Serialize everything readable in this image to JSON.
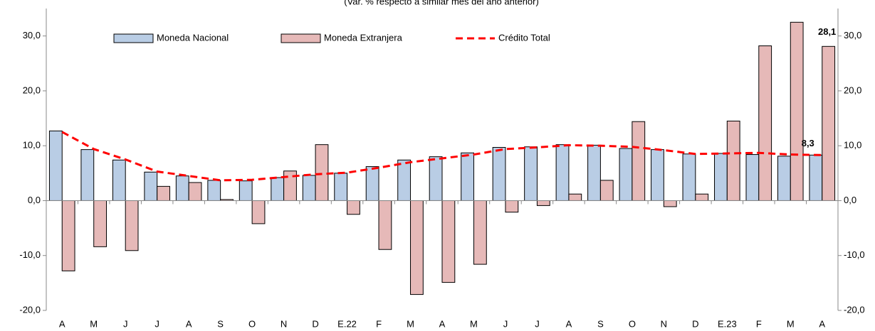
{
  "chart_data": {
    "type": "bar-line",
    "subtitle": "(Var. % respecto a similar mes del año anterior)",
    "categories": [
      "A",
      "M",
      "J",
      "J",
      "A",
      "S",
      "O",
      "N",
      "D",
      "E.22",
      "F",
      "M",
      "A",
      "M",
      "J",
      "J",
      "A",
      "S",
      "O",
      "N",
      "D",
      "E.23",
      "F",
      "M",
      "A"
    ],
    "series": [
      {
        "name": "Moneda Nacional",
        "type": "bar",
        "color": "#b9cde5",
        "values": [
          12.7,
          9.3,
          7.4,
          5.2,
          4.5,
          3.7,
          3.6,
          4.2,
          4.6,
          5.0,
          6.2,
          7.4,
          8.0,
          8.7,
          9.7,
          9.8,
          10.2,
          10.1,
          9.5,
          9.3,
          8.5,
          8.6,
          8.4,
          8.1,
          8.3
        ]
      },
      {
        "name": "Moneda Extranjera",
        "type": "bar",
        "color": "#e6b9b8",
        "values": [
          -12.8,
          -8.4,
          -9.1,
          2.6,
          3.3,
          0.2,
          -4.2,
          5.4,
          10.2,
          -2.5,
          -8.9,
          -17.1,
          -14.9,
          -11.6,
          -2.1,
          -0.9,
          1.2,
          3.7,
          14.4,
          -1.1,
          1.2,
          14.5,
          28.2,
          32.5,
          28.1
        ],
        "value_labels": [
          null,
          null,
          null,
          null,
          null,
          null,
          null,
          null,
          null,
          null,
          null,
          null,
          null,
          null,
          null,
          null,
          null,
          null,
          null,
          null,
          null,
          null,
          null,
          null,
          "28,1"
        ]
      },
      {
        "name": "Crédito Total",
        "type": "line",
        "color": "#ff0000",
        "values": [
          12.5,
          9.4,
          7.5,
          5.3,
          4.5,
          3.7,
          3.8,
          4.3,
          4.8,
          5.1,
          6.0,
          7.0,
          7.7,
          8.4,
          9.4,
          9.7,
          10.1,
          10.0,
          9.8,
          9.2,
          8.5,
          8.6,
          8.7,
          8.4,
          8.3
        ],
        "value_labels": [
          null,
          null,
          null,
          null,
          null,
          null,
          null,
          null,
          null,
          null,
          null,
          null,
          null,
          null,
          null,
          null,
          null,
          null,
          null,
          null,
          null,
          null,
          null,
          null,
          "8,3"
        ]
      }
    ],
    "ylim": [
      -20,
      35
    ],
    "yticks": [
      {
        "value": -20,
        "label": "-20,0"
      },
      {
        "value": -10,
        "label": "-10,0"
      },
      {
        "value": 0,
        "label": "0,0"
      },
      {
        "value": 10,
        "label": "10,0"
      },
      {
        "value": 20,
        "label": "20,0"
      },
      {
        "value": 30,
        "label": "30,0"
      }
    ],
    "y2lim": [
      -20,
      35
    ],
    "y2ticks": [
      {
        "value": -20,
        "label": "-20,0"
      },
      {
        "value": -10,
        "label": "-10,0"
      },
      {
        "value": 0,
        "label": "0,0"
      },
      {
        "value": 10,
        "label": "10,0"
      },
      {
        "value": 20,
        "label": "20,0"
      },
      {
        "value": 30,
        "label": "30,0"
      }
    ],
    "legend": "top",
    "grid": false
  }
}
